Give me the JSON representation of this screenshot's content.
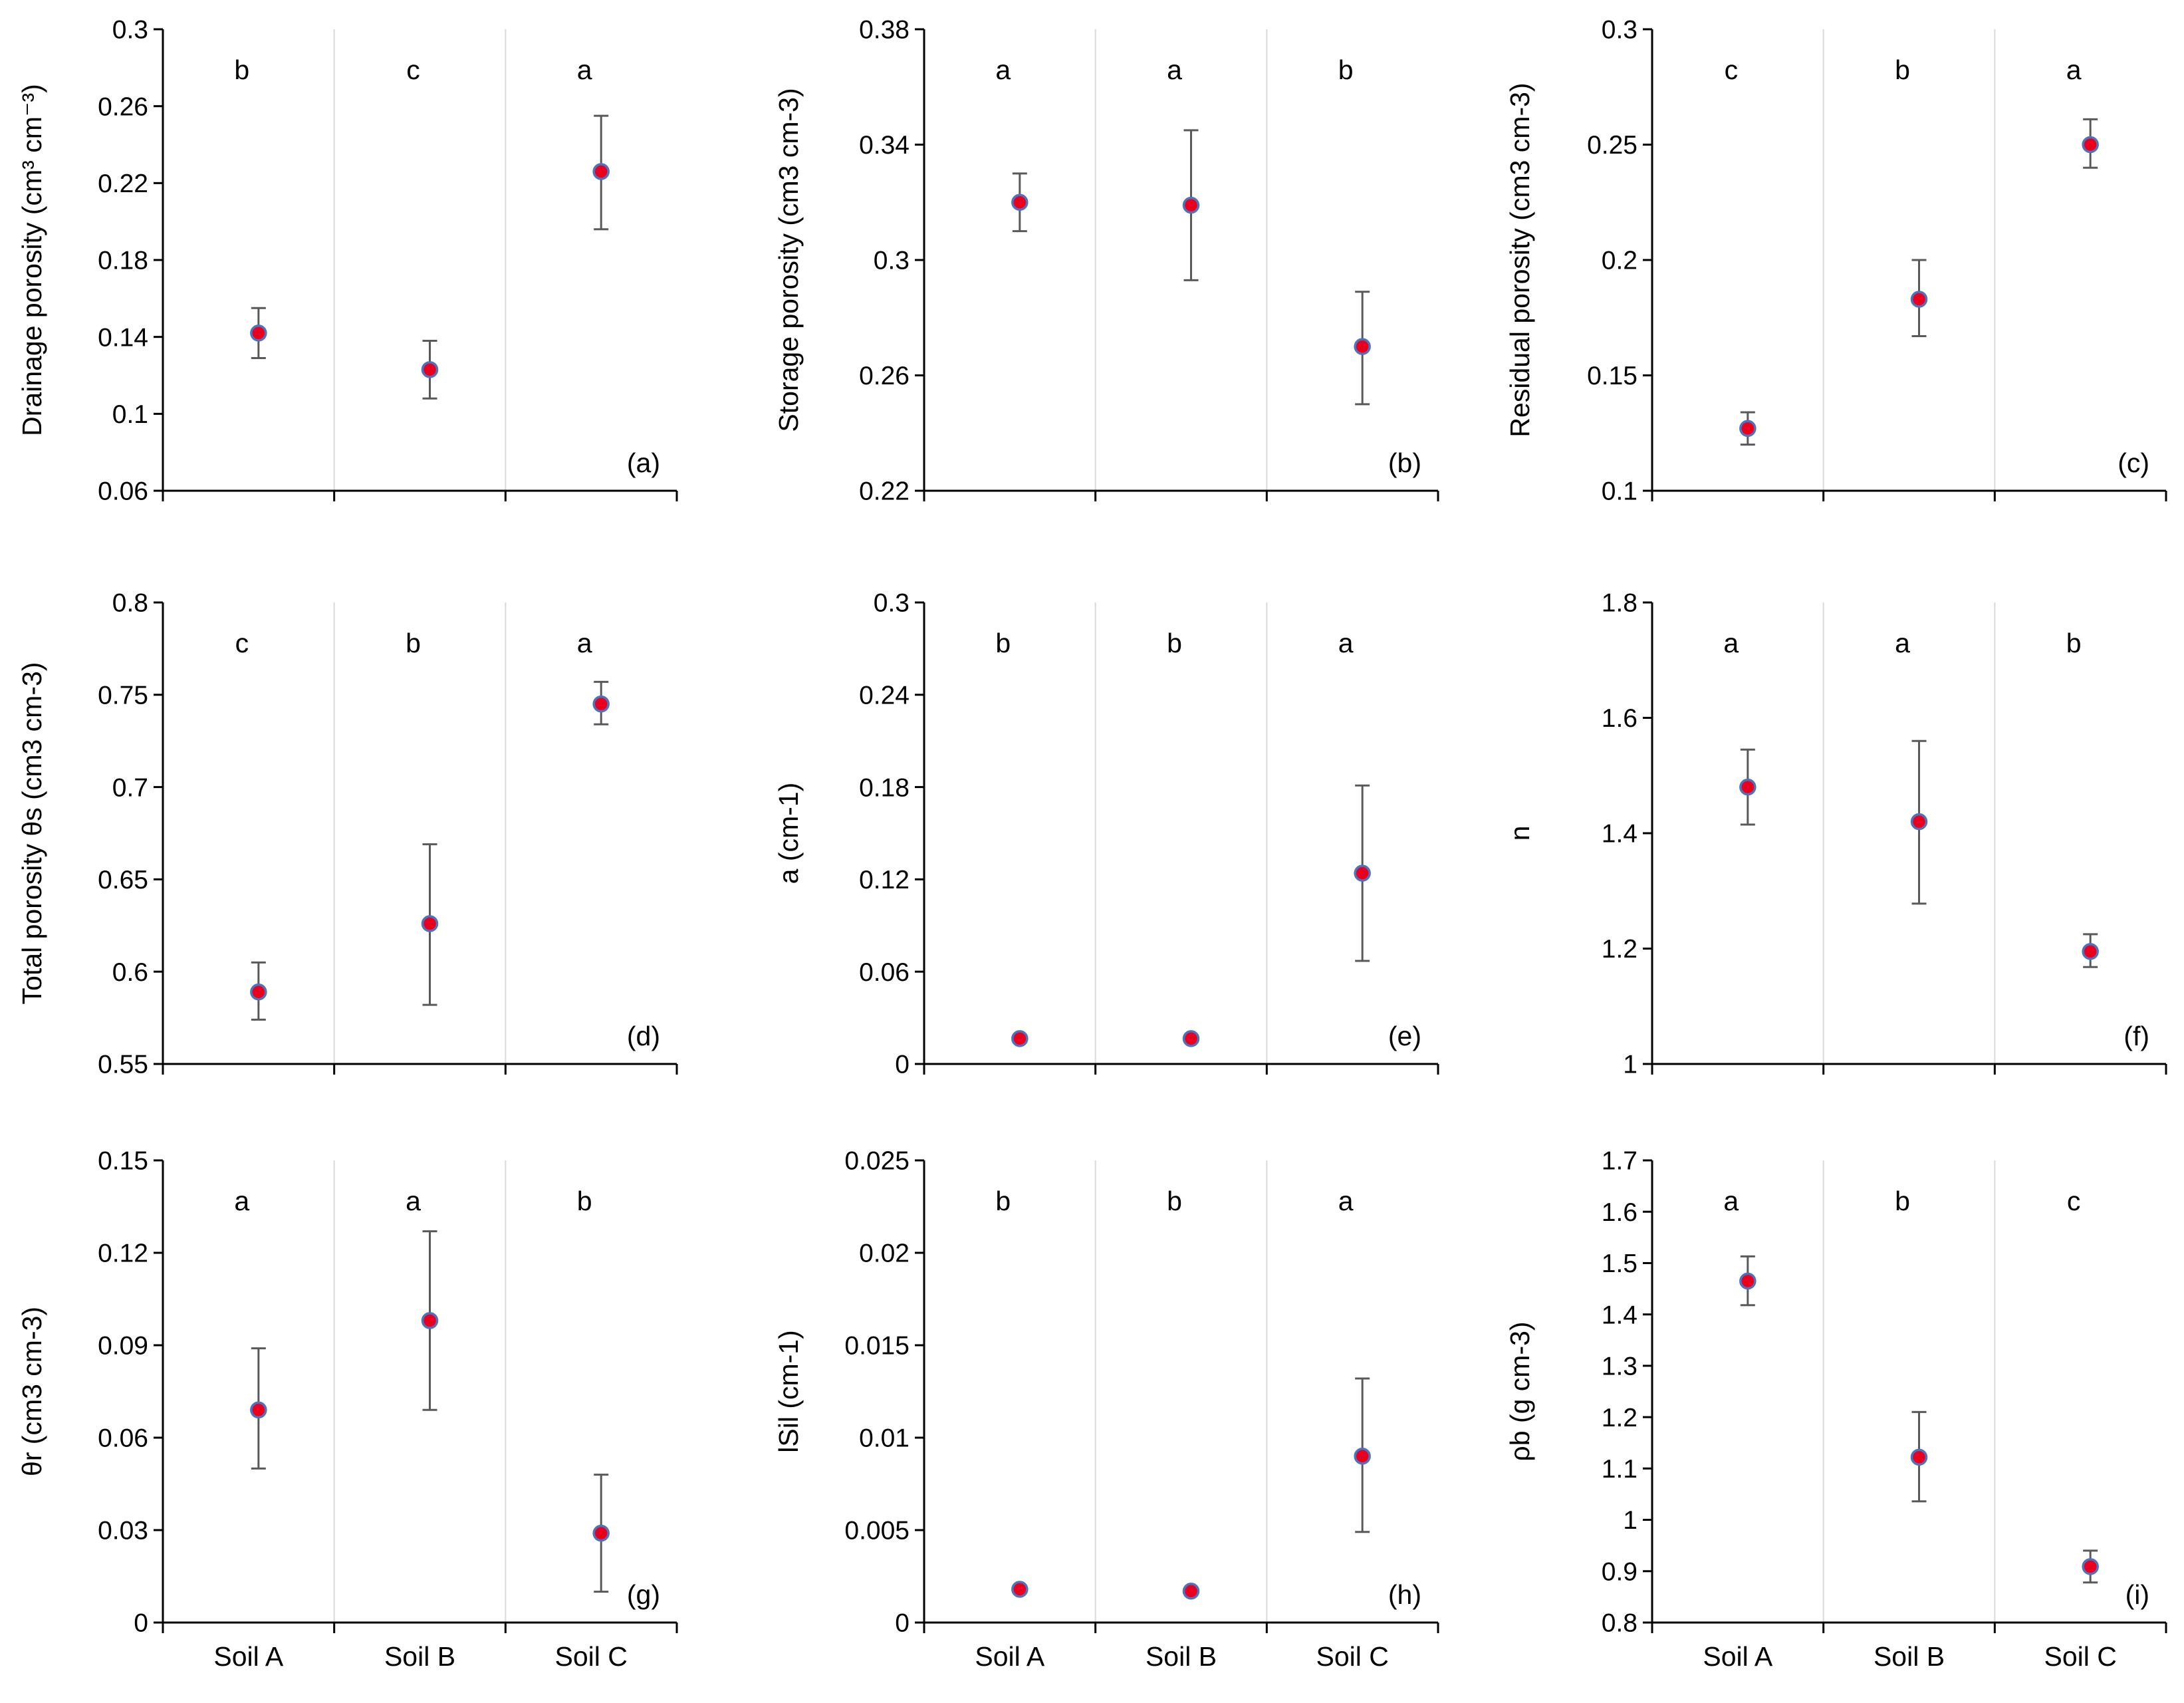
{
  "figure": {
    "x_categories": [
      "Soil A",
      "Soil B",
      "Soil C"
    ]
  },
  "colors": {
    "marker_fill": "#e8001e",
    "marker_stroke": "#4f72be",
    "error_bar": "#595959",
    "axis": "#000000",
    "separator": "#d9d9d9"
  },
  "chart_data": [
    {
      "type": "scatter",
      "panel_label": "(a)",
      "ylabel": "Drainage porosity (cm³ cm⁻³)",
      "ylim": [
        0.06,
        0.3
      ],
      "yticks": [
        0.06,
        0.1,
        0.14,
        0.18,
        0.22,
        0.26,
        0.3
      ],
      "ytick_labels": [
        "0.06",
        "0.1",
        "0.14",
        "0.18",
        "0.22",
        "0.26",
        "0.3"
      ],
      "categories": [
        "Soil A",
        "Soil B",
        "Soil C"
      ],
      "values": [
        0.142,
        0.123,
        0.226
      ],
      "err_low": [
        0.129,
        0.108,
        0.196
      ],
      "err_high": [
        0.155,
        0.138,
        0.255
      ],
      "letters": [
        "b",
        "c",
        "a"
      ]
    },
    {
      "type": "scatter",
      "panel_label": "(b)",
      "ylabel": "Storage porosity (cm3 cm-3)",
      "ylim": [
        0.22,
        0.38
      ],
      "yticks": [
        0.22,
        0.26,
        0.3,
        0.34,
        0.38
      ],
      "ytick_labels": [
        "0.22",
        "0.26",
        "0.3",
        "0.34",
        "0.38"
      ],
      "categories": [
        "Soil A",
        "Soil B",
        "Soil C"
      ],
      "values": [
        0.32,
        0.319,
        0.27
      ],
      "err_low": [
        0.31,
        0.293,
        0.25
      ],
      "err_high": [
        0.33,
        0.345,
        0.289
      ],
      "letters": [
        "a",
        "a",
        "b"
      ]
    },
    {
      "type": "scatter",
      "panel_label": "(c)",
      "ylabel": "Residual porosity (cm3 cm-3)",
      "ylim": [
        0.1,
        0.3
      ],
      "yticks": [
        0.1,
        0.15,
        0.2,
        0.25,
        0.3
      ],
      "ytick_labels": [
        "0.1",
        "0.15",
        "0.2",
        "0.25",
        "0.3"
      ],
      "categories": [
        "Soil A",
        "Soil B",
        "Soil C"
      ],
      "values": [
        0.127,
        0.183,
        0.25
      ],
      "err_low": [
        0.12,
        0.167,
        0.24
      ],
      "err_high": [
        0.134,
        0.2,
        0.261
      ],
      "letters": [
        "c",
        "b",
        "a"
      ]
    },
    {
      "type": "scatter",
      "panel_label": "(d)",
      "ylabel": "Total porosity θs (cm3 cm-3)",
      "ylim": [
        0.55,
        0.8
      ],
      "yticks": [
        0.55,
        0.6,
        0.65,
        0.7,
        0.75,
        0.8
      ],
      "ytick_labels": [
        "0.55",
        "0.6",
        "0.65",
        "0.7",
        "0.75",
        "0.8"
      ],
      "categories": [
        "Soil A",
        "Soil B",
        "Soil C"
      ],
      "values": [
        0.589,
        0.626,
        0.745
      ],
      "err_low": [
        0.574,
        0.582,
        0.734
      ],
      "err_high": [
        0.605,
        0.669,
        0.757
      ],
      "letters": [
        "c",
        "b",
        "a"
      ]
    },
    {
      "type": "scatter",
      "panel_label": "(e)",
      "ylabel": "a (cm-1)",
      "ylim": [
        0,
        0.3
      ],
      "yticks": [
        0,
        0.06,
        0.12,
        0.18,
        0.24,
        0.3
      ],
      "ytick_labels": [
        "0",
        "0.06",
        "0.12",
        "0.18",
        "0.24",
        "0.3"
      ],
      "categories": [
        "Soil A",
        "Soil B",
        "Soil C"
      ],
      "values": [
        0.0165,
        0.0165,
        0.124
      ],
      "err_low": [
        0.0165,
        0.0165,
        0.067
      ],
      "err_high": [
        0.0165,
        0.0165,
        0.181
      ],
      "letters": [
        "b",
        "b",
        "a"
      ]
    },
    {
      "type": "scatter",
      "panel_label": "(f)",
      "ylabel": "n",
      "ylim": [
        1,
        1.8
      ],
      "yticks": [
        1,
        1.2,
        1.4,
        1.6,
        1.8
      ],
      "ytick_labels": [
        "1",
        "1.2",
        "1.4",
        "1.6",
        "1.8"
      ],
      "categories": [
        "Soil A",
        "Soil B",
        "Soil C"
      ],
      "values": [
        1.48,
        1.42,
        1.195
      ],
      "err_low": [
        1.415,
        1.278,
        1.168
      ],
      "err_high": [
        1.545,
        1.56,
        1.225
      ],
      "letters": [
        "a",
        "a",
        "b"
      ]
    },
    {
      "type": "scatter",
      "panel_label": "(g)",
      "ylabel": "θr  (cm3 cm-3)",
      "ylim": [
        0,
        0.15
      ],
      "yticks": [
        0,
        0.03,
        0.06,
        0.09,
        0.12,
        0.15
      ],
      "ytick_labels": [
        "0",
        "0.03",
        "0.06",
        "0.09",
        "0.12",
        "0.15"
      ],
      "categories": [
        "Soil A",
        "Soil B",
        "Soil C"
      ],
      "values": [
        0.069,
        0.098,
        0.029
      ],
      "err_low": [
        0.05,
        0.069,
        0.01
      ],
      "err_high": [
        0.089,
        0.127,
        0.048
      ],
      "letters": [
        "a",
        "a",
        "b"
      ]
    },
    {
      "type": "scatter",
      "panel_label": "(h)",
      "ylabel": "lSil (cm-1)",
      "ylim": [
        0,
        0.025
      ],
      "yticks": [
        0,
        0.005,
        0.01,
        0.015,
        0.02,
        0.025
      ],
      "ytick_labels": [
        "0",
        "0.005",
        "0.01",
        "0.015",
        "0.02",
        "0.025"
      ],
      "categories": [
        "Soil A",
        "Soil B",
        "Soil C"
      ],
      "values": [
        0.0018,
        0.0017,
        0.009
      ],
      "err_low": [
        0.0018,
        0.0017,
        0.0049
      ],
      "err_high": [
        0.0018,
        0.0017,
        0.0132
      ],
      "letters": [
        "b",
        "b",
        "a"
      ]
    },
    {
      "type": "scatter",
      "panel_label": "(i)",
      "ylabel": "ρb (g cm-3)",
      "ylim": [
        0.8,
        1.7
      ],
      "yticks": [
        0.8,
        0.9,
        1,
        1.1,
        1.2,
        1.3,
        1.4,
        1.5,
        1.6,
        1.7
      ],
      "ytick_labels": [
        "0.8",
        "0.9",
        "1",
        "1.1",
        "1.2",
        "1.3",
        "1.4",
        "1.5",
        "1.6",
        "1.7"
      ],
      "categories": [
        "Soil A",
        "Soil B",
        "Soil C"
      ],
      "values": [
        1.465,
        1.122,
        0.909
      ],
      "err_low": [
        1.418,
        1.036,
        0.878
      ],
      "err_high": [
        1.513,
        1.21,
        0.94
      ],
      "letters": [
        "a",
        "b",
        "c"
      ]
    }
  ]
}
